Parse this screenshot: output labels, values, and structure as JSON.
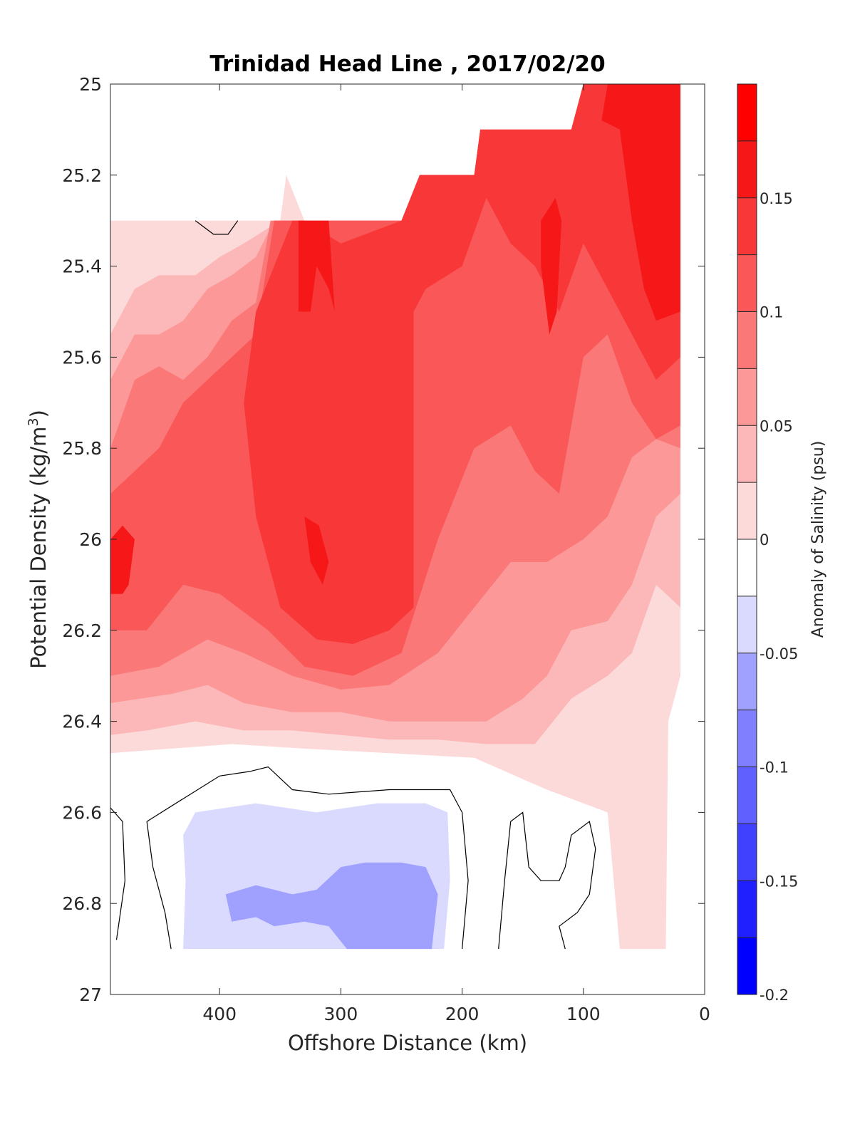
{
  "chart_data": {
    "type": "filled-contour",
    "title": "Trinidad Head Line , 2017/02/20",
    "xlabel": "Offshore Distance (km)",
    "ylabel": "Potential Density (kg/m",
    "ylabel_sup": "3",
    "ylabel_close": ")",
    "colorbar_label": "Anomaly of Salinity (psu)",
    "xlim": [
      490,
      0
    ],
    "ylim": [
      25,
      27
    ],
    "y_reversed": true,
    "x_ticks": [
      400,
      300,
      200,
      100,
      0
    ],
    "x_tick_labels": [
      "400",
      "300",
      "200",
      "100",
      "0"
    ],
    "y_ticks": [
      25,
      25.2,
      25.4,
      25.6,
      25.8,
      26,
      26.2,
      26.4,
      26.6,
      26.8,
      27
    ],
    "y_tick_labels": [
      "25",
      "25.2",
      "25.4",
      "25.6",
      "25.8",
      "26",
      "26.2",
      "26.4",
      "26.6",
      "26.8",
      "27"
    ],
    "colorbar": {
      "range": [
        -0.2,
        0.2
      ],
      "levels": [
        -0.2,
        -0.175,
        -0.15,
        -0.125,
        -0.1,
        -0.075,
        -0.05,
        -0.025,
        0,
        0.025,
        0.05,
        0.075,
        0.1,
        0.125,
        0.15,
        0.175,
        0.2
      ],
      "colors": [
        "#0000ff",
        "#2020ff",
        "#4040ff",
        "#6060ff",
        "#8080ff",
        "#a0a0ff",
        "#dadaff",
        "#ffffff",
        "#ffffff",
        "#fddada",
        "#fcb8b8",
        "#fc9898",
        "#fb7878",
        "#fa5858",
        "#f83838",
        "#f61818",
        "#ff0000"
      ],
      "ticks": [
        -0.2,
        -0.15,
        -0.1,
        -0.05,
        0,
        0.05,
        0.1,
        0.15
      ],
      "tick_labels": [
        "-0.2",
        "-0.15",
        "-0.1",
        "-0.05",
        "0",
        "0.05",
        "0.1",
        "0.15"
      ]
    },
    "data_coverage": {
      "x_range": [
        490,
        20
      ],
      "top_boundary": [
        [
          490,
          25.3
        ],
        [
          350,
          25.3
        ],
        [
          345,
          25.2
        ],
        [
          330,
          25.3
        ],
        [
          250,
          25.3
        ],
        [
          235,
          25.2
        ],
        [
          190,
          25.2
        ],
        [
          185,
          25.1
        ],
        [
          110,
          25.1
        ],
        [
          100,
          25.0
        ],
        [
          20,
          25.0
        ]
      ],
      "bottom_density": 26.9
    },
    "regions": [
      {
        "level": 0.025,
        "points": [
          [
            490,
            25.3
          ],
          [
            350,
            25.3
          ],
          [
            345,
            25.2
          ],
          [
            330,
            25.3
          ],
          [
            250,
            25.3
          ],
          [
            235,
            25.2
          ],
          [
            190,
            25.2
          ],
          [
            185,
            25.1
          ],
          [
            110,
            25.1
          ],
          [
            100,
            25.0
          ],
          [
            20,
            25.0
          ],
          [
            20,
            26.3
          ],
          [
            30,
            26.4
          ],
          [
            32,
            26.9
          ],
          [
            70,
            26.9
          ],
          [
            80,
            26.6
          ],
          [
            130,
            26.55
          ],
          [
            190,
            26.48
          ],
          [
            260,
            26.47
          ],
          [
            330,
            26.46
          ],
          [
            390,
            26.45
          ],
          [
            440,
            26.46
          ],
          [
            490,
            26.47
          ]
        ]
      },
      {
        "level": 0.05,
        "points": [
          [
            490,
            25.55
          ],
          [
            470,
            25.45
          ],
          [
            450,
            25.42
          ],
          [
            420,
            25.42
          ],
          [
            400,
            25.38
          ],
          [
            380,
            25.35
          ],
          [
            350,
            25.3
          ],
          [
            330,
            25.3
          ],
          [
            250,
            25.3
          ],
          [
            235,
            25.2
          ],
          [
            190,
            25.2
          ],
          [
            185,
            25.1
          ],
          [
            110,
            25.1
          ],
          [
            100,
            25.0
          ],
          [
            20,
            25.0
          ],
          [
            20,
            26.15
          ],
          [
            40,
            26.1
          ],
          [
            60,
            26.25
          ],
          [
            80,
            26.3
          ],
          [
            110,
            26.35
          ],
          [
            140,
            26.45
          ],
          [
            180,
            26.45
          ],
          [
            220,
            26.44
          ],
          [
            260,
            26.44
          ],
          [
            300,
            26.43
          ],
          [
            340,
            26.42
          ],
          [
            380,
            26.42
          ],
          [
            420,
            26.4
          ],
          [
            460,
            26.42
          ],
          [
            490,
            26.43
          ]
        ]
      },
      {
        "level": 0.075,
        "points": [
          [
            490,
            25.65
          ],
          [
            470,
            25.55
          ],
          [
            450,
            25.55
          ],
          [
            430,
            25.52
          ],
          [
            410,
            25.45
          ],
          [
            390,
            25.42
          ],
          [
            370,
            25.38
          ],
          [
            355,
            25.3
          ],
          [
            330,
            25.3
          ],
          [
            250,
            25.3
          ],
          [
            235,
            25.2
          ],
          [
            190,
            25.2
          ],
          [
            185,
            25.1
          ],
          [
            110,
            25.1
          ],
          [
            100,
            25.0
          ],
          [
            20,
            25.0
          ],
          [
            20,
            25.9
          ],
          [
            40,
            25.95
          ],
          [
            60,
            26.1
          ],
          [
            80,
            26.18
          ],
          [
            110,
            26.2
          ],
          [
            130,
            26.3
          ],
          [
            150,
            26.35
          ],
          [
            180,
            26.4
          ],
          [
            220,
            26.4
          ],
          [
            260,
            26.4
          ],
          [
            300,
            26.38
          ],
          [
            340,
            26.38
          ],
          [
            380,
            26.36
          ],
          [
            410,
            26.32
          ],
          [
            440,
            26.34
          ],
          [
            490,
            26.36
          ]
        ]
      },
      {
        "level": 0.1,
        "points": [
          [
            490,
            25.8
          ],
          [
            470,
            25.65
          ],
          [
            450,
            25.62
          ],
          [
            430,
            25.65
          ],
          [
            410,
            25.6
          ],
          [
            390,
            25.52
          ],
          [
            370,
            25.48
          ],
          [
            358,
            25.3
          ],
          [
            330,
            25.3
          ],
          [
            250,
            25.3
          ],
          [
            235,
            25.2
          ],
          [
            190,
            25.2
          ],
          [
            185,
            25.1
          ],
          [
            110,
            25.1
          ],
          [
            100,
            25.0
          ],
          [
            20,
            25.0
          ],
          [
            20,
            25.8
          ],
          [
            40,
            25.78
          ],
          [
            60,
            25.82
          ],
          [
            80,
            25.95
          ],
          [
            100,
            26.0
          ],
          [
            130,
            26.05
          ],
          [
            160,
            26.05
          ],
          [
            190,
            26.15
          ],
          [
            220,
            26.25
          ],
          [
            260,
            26.32
          ],
          [
            300,
            26.33
          ],
          [
            340,
            26.3
          ],
          [
            380,
            26.25
          ],
          [
            410,
            26.22
          ],
          [
            450,
            26.28
          ],
          [
            490,
            26.3
          ]
        ]
      },
      {
        "level": 0.125,
        "points": [
          [
            490,
            25.9
          ],
          [
            470,
            25.85
          ],
          [
            450,
            25.8
          ],
          [
            430,
            25.7
          ],
          [
            410,
            25.65
          ],
          [
            390,
            25.6
          ],
          [
            370,
            25.55
          ],
          [
            355,
            25.3
          ],
          [
            330,
            25.3
          ],
          [
            250,
            25.3
          ],
          [
            235,
            25.2
          ],
          [
            190,
            25.2
          ],
          [
            185,
            25.1
          ],
          [
            110,
            25.1
          ],
          [
            100,
            25.0
          ],
          [
            20,
            25.0
          ],
          [
            20,
            25.75
          ],
          [
            40,
            25.78
          ],
          [
            60,
            25.7
          ],
          [
            80,
            25.55
          ],
          [
            100,
            25.6
          ],
          [
            120,
            25.9
          ],
          [
            140,
            25.85
          ],
          [
            160,
            25.75
          ],
          [
            190,
            25.8
          ],
          [
            220,
            26.0
          ],
          [
            250,
            26.25
          ],
          [
            290,
            26.3
          ],
          [
            330,
            26.28
          ],
          [
            360,
            26.2
          ],
          [
            400,
            26.12
          ],
          [
            430,
            26.1
          ],
          [
            460,
            26.2
          ],
          [
            490,
            26.2
          ]
        ]
      },
      {
        "level": 0.15,
        "points": [
          [
            340,
            25.3
          ],
          [
            330,
            25.3
          ],
          [
            300,
            25.35
          ],
          [
            270,
            25.32
          ],
          [
            250,
            25.3
          ],
          [
            235,
            25.2
          ],
          [
            190,
            25.2
          ],
          [
            185,
            25.1
          ],
          [
            110,
            25.1
          ],
          [
            100,
            25.0
          ],
          [
            20,
            25.0
          ],
          [
            20,
            25.6
          ],
          [
            40,
            25.65
          ],
          [
            60,
            25.55
          ],
          [
            80,
            25.45
          ],
          [
            100,
            25.35
          ],
          [
            120,
            25.5
          ],
          [
            140,
            25.4
          ],
          [
            160,
            25.35
          ],
          [
            180,
            25.25
          ],
          [
            200,
            25.4
          ],
          [
            230,
            25.45
          ],
          [
            240,
            25.5
          ],
          [
            240,
            26.15
          ],
          [
            260,
            26.2
          ],
          [
            290,
            26.23
          ],
          [
            320,
            26.22
          ],
          [
            350,
            26.15
          ],
          [
            370,
            25.95
          ],
          [
            380,
            25.7
          ],
          [
            370,
            25.5
          ]
        ]
      },
      {
        "level": 0.175,
        "points": [
          [
            335,
            25.3
          ],
          [
            310,
            25.3
          ],
          [
            305,
            25.5
          ],
          [
            310,
            25.45
          ],
          [
            320,
            25.4
          ],
          [
            325,
            25.5
          ],
          [
            335,
            25.5
          ]
        ]
      },
      {
        "level": 0.175,
        "points": [
          [
            80,
            25.0
          ],
          [
            20,
            25.0
          ],
          [
            20,
            25.5
          ],
          [
            40,
            25.52
          ],
          [
            50,
            25.45
          ],
          [
            60,
            25.3
          ],
          [
            70,
            25.1
          ],
          [
            85,
            25.08
          ]
        ]
      },
      {
        "level": 0.175,
        "points": [
          [
            490,
            26.0
          ],
          [
            480,
            25.97
          ],
          [
            470,
            26.0
          ],
          [
            475,
            26.1
          ],
          [
            480,
            26.12
          ],
          [
            490,
            26.12
          ]
        ]
      },
      {
        "level": 0.175,
        "points": [
          [
            330,
            25.95
          ],
          [
            318,
            25.97
          ],
          [
            310,
            26.05
          ],
          [
            315,
            26.1
          ],
          [
            325,
            26.05
          ]
        ]
      },
      {
        "level": 0.175,
        "points": [
          [
            135,
            25.3
          ],
          [
            123,
            25.25
          ],
          [
            118,
            25.3
          ],
          [
            122,
            25.5
          ],
          [
            128,
            25.55
          ],
          [
            135,
            25.4
          ]
        ]
      },
      {
        "level": -0.05,
        "points": [
          [
            430,
            26.65
          ],
          [
            420,
            26.6
          ],
          [
            370,
            26.58
          ],
          [
            320,
            26.6
          ],
          [
            270,
            26.58
          ],
          [
            230,
            26.58
          ],
          [
            212,
            26.6
          ],
          [
            210,
            26.75
          ],
          [
            215,
            26.9
          ],
          [
            430,
            26.9
          ],
          [
            428,
            26.75
          ]
        ]
      },
      {
        "level": -0.075,
        "points": [
          [
            395,
            26.78
          ],
          [
            370,
            26.76
          ],
          [
            340,
            26.78
          ],
          [
            320,
            26.77
          ],
          [
            300,
            26.72
          ],
          [
            280,
            26.71
          ],
          [
            250,
            26.71
          ],
          [
            230,
            26.72
          ],
          [
            220,
            26.78
          ],
          [
            225,
            26.9
          ],
          [
            295,
            26.9
          ],
          [
            310,
            26.85
          ],
          [
            330,
            26.84
          ],
          [
            355,
            26.85
          ],
          [
            370,
            26.83
          ],
          [
            390,
            26.84
          ]
        ]
      }
    ],
    "zero_contours": [
      [
        [
          420,
          25.3
        ],
        [
          415,
          25.31
        ],
        [
          405,
          25.33
        ],
        [
          393,
          25.33
        ],
        [
          385,
          25.3
        ]
      ],
      [
        [
          490,
          26.59
        ],
        [
          480,
          26.62
        ],
        [
          478,
          26.75
        ],
        [
          485,
          26.88
        ]
      ],
      [
        [
          460,
          26.62
        ],
        [
          455,
          26.72
        ],
        [
          445,
          26.82
        ],
        [
          440,
          26.9
        ]
      ],
      [
        [
          460,
          26.62
        ],
        [
          430,
          26.57
        ],
        [
          400,
          26.52
        ],
        [
          375,
          26.51
        ],
        [
          360,
          26.5
        ],
        [
          340,
          26.55
        ],
        [
          310,
          26.56
        ],
        [
          260,
          26.55
        ],
        [
          210,
          26.55
        ],
        [
          200,
          26.6
        ],
        [
          195,
          26.75
        ],
        [
          200,
          26.9
        ]
      ],
      [
        [
          170,
          26.9
        ],
        [
          165,
          26.75
        ],
        [
          160,
          26.62
        ],
        [
          150,
          26.6
        ],
        [
          145,
          26.72
        ],
        [
          135,
          26.75
        ],
        [
          120,
          26.75
        ],
        [
          115,
          26.72
        ],
        [
          110,
          26.65
        ],
        [
          95,
          26.62
        ],
        [
          90,
          26.68
        ],
        [
          95,
          26.78
        ],
        [
          105,
          26.82
        ],
        [
          120,
          26.85
        ],
        [
          115,
          26.9
        ]
      ]
    ]
  }
}
